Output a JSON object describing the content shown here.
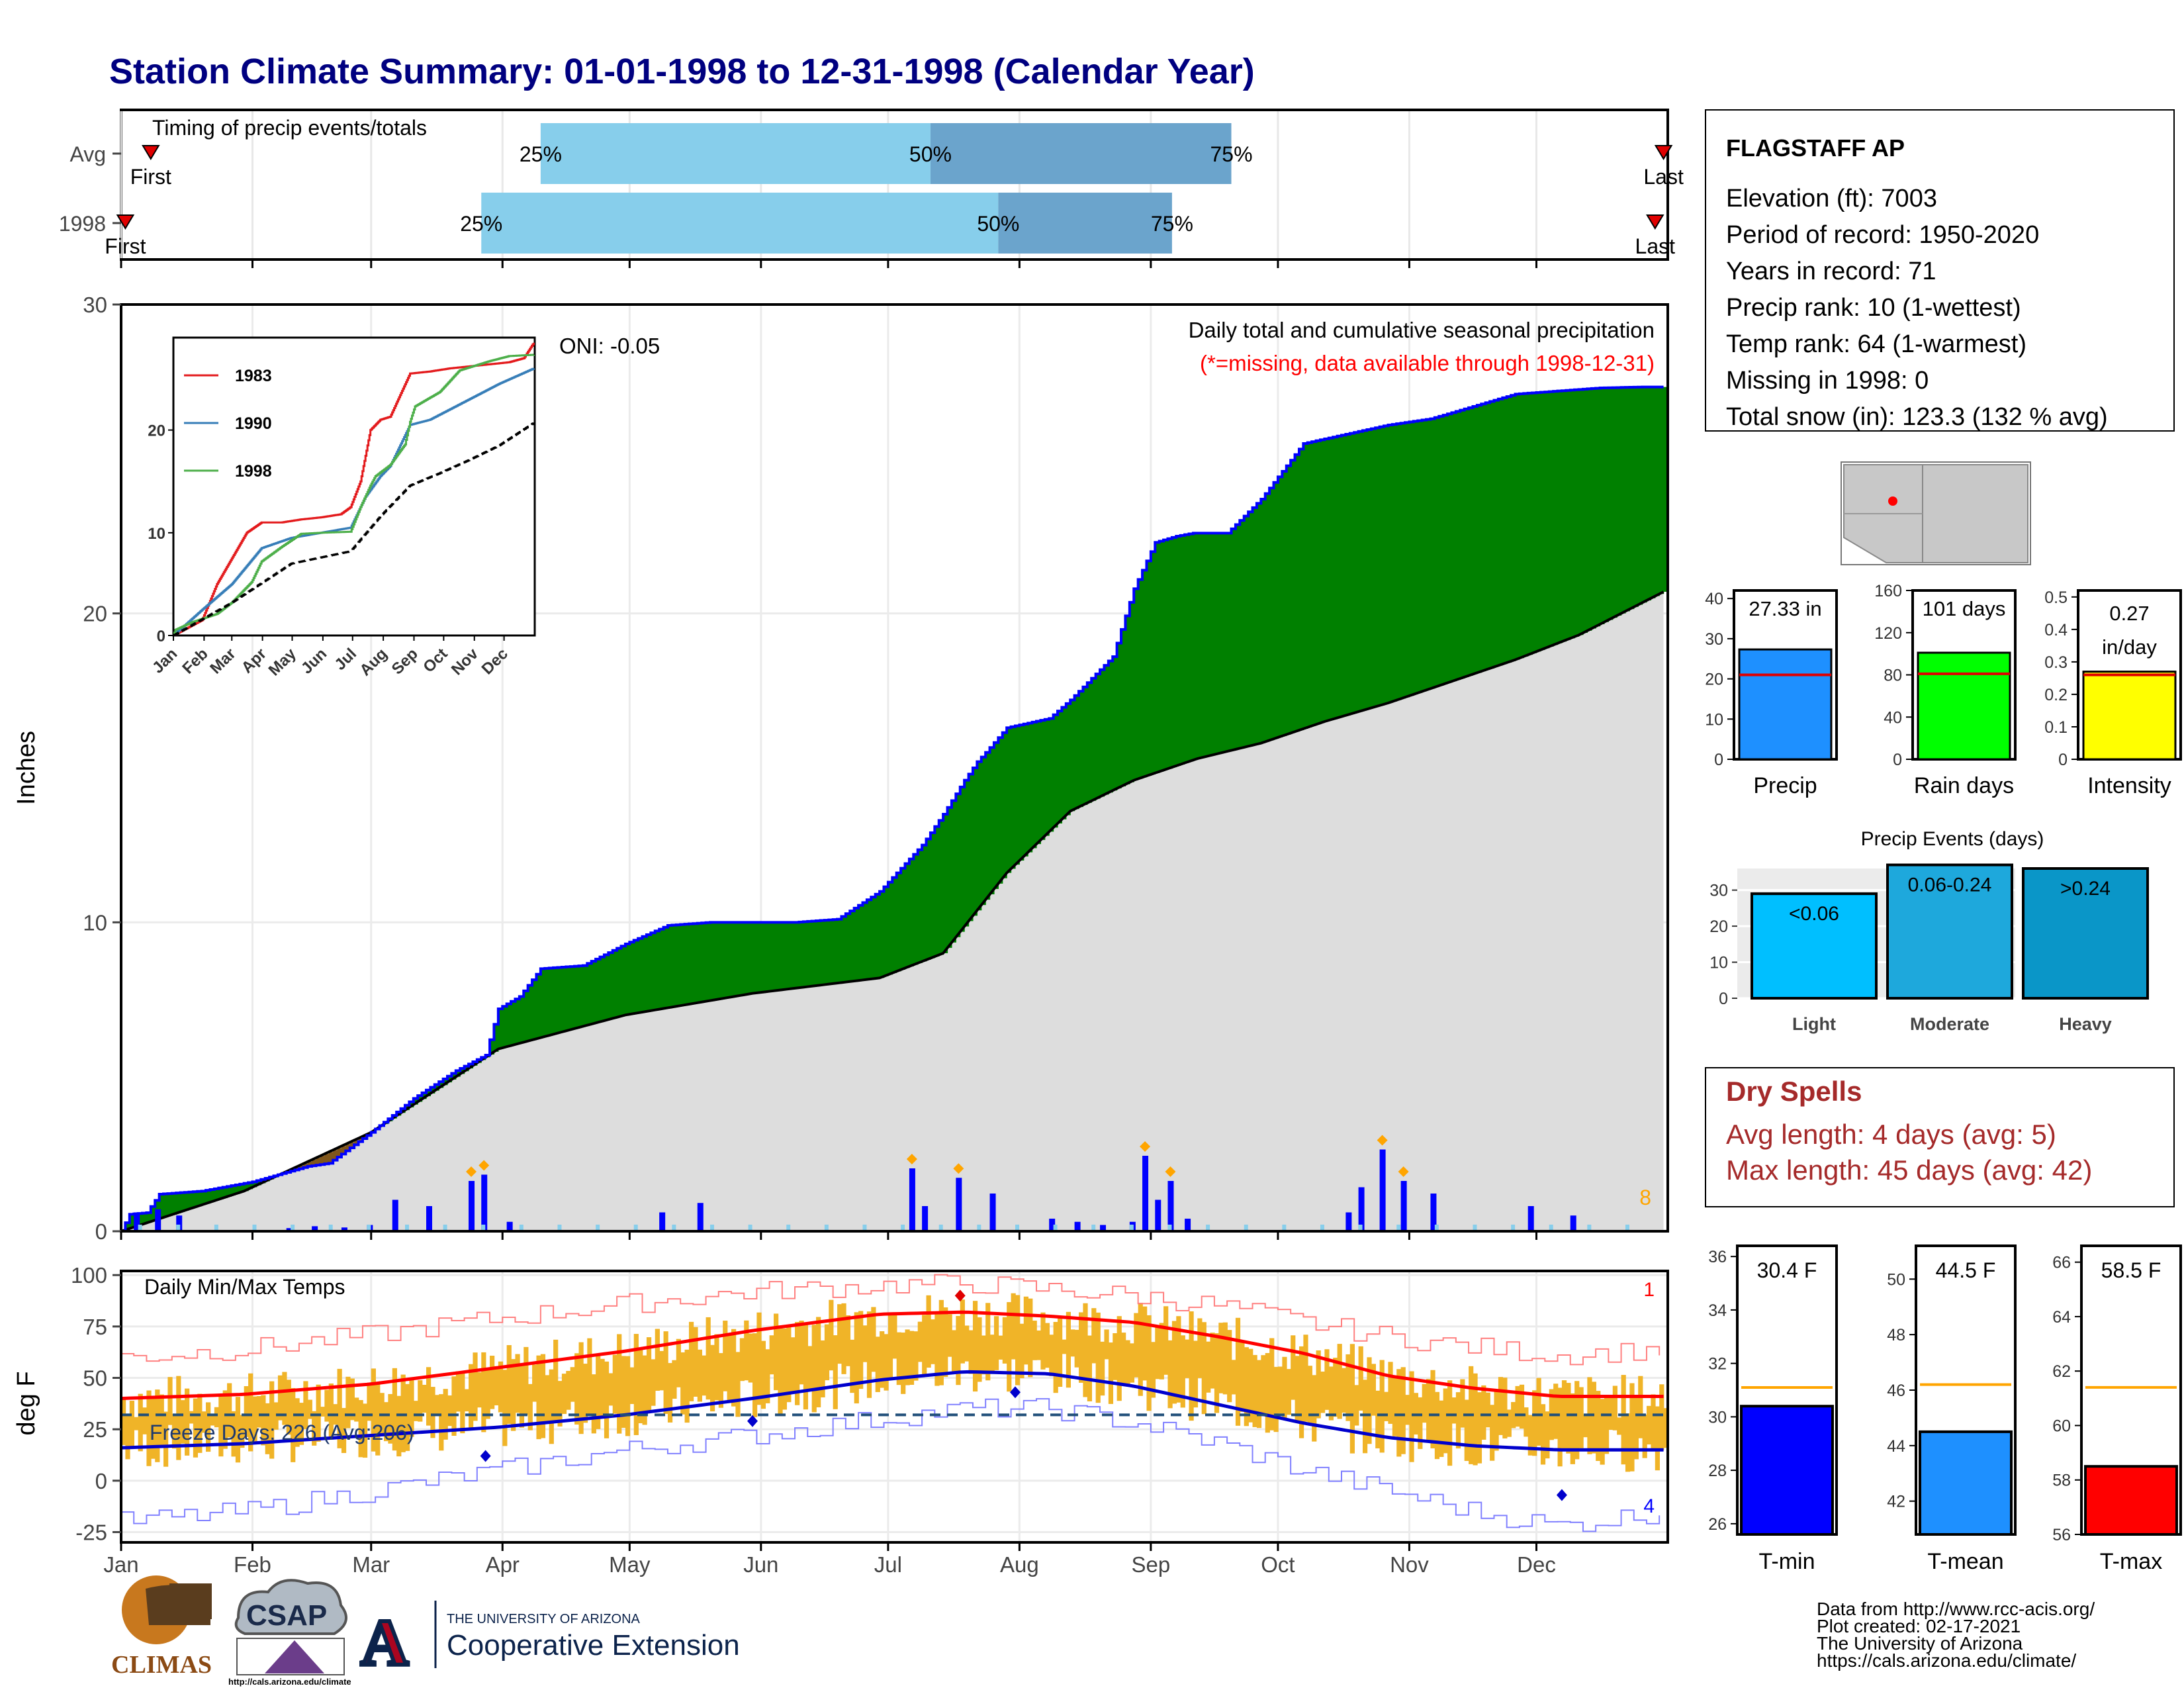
{
  "title": "Station Climate Summary: 01-01-1998 to 12-31-1998 (Calendar Year)",
  "months": [
    "Jan",
    "Feb",
    "Mar",
    "Apr",
    "May",
    "Jun",
    "Jul",
    "Aug",
    "Sep",
    "Oct",
    "Nov",
    "Dec"
  ],
  "timing": {
    "label": "Timing of precip events/totals",
    "rows": [
      {
        "name": "Avg",
        "first_label": "First",
        "last_label": "Last",
        "first_day": 8,
        "last_day": 365,
        "p25_day": 100,
        "p50_day": 192,
        "p75_day": 263,
        "p25_label": "25%",
        "p50_label": "50%",
        "p75_label": "75%"
      },
      {
        "name": "1998",
        "first_label": "First",
        "last_label": "Last",
        "first_day": 2,
        "last_day": 363,
        "p25_day": 86,
        "p50_day": 208,
        "p75_day": 249,
        "p25_label": "25%",
        "p50_label": "50%",
        "p75_label": "75%"
      }
    ],
    "color_light": "#87ceeb",
    "color_dark": "#6ba4cc"
  },
  "chart_data": [
    {
      "type": "area",
      "name": "cumulative-precip",
      "ylabel": "Inches",
      "ylim": [
        0,
        30
      ],
      "yticks": [
        0,
        10,
        20,
        30
      ],
      "annotation_title": "Daily total and cumulative seasonal precipitation",
      "annotation_missing": "(*=missing, data available through 1998-12-31)",
      "oni_label": "ONI: -0.05",
      "count_label": "8",
      "cumulative_1998": {
        "x_day": [
          1,
          3,
          7,
          10,
          20,
          32,
          45,
          50,
          60,
          70,
          80,
          87,
          90,
          95,
          100,
          110,
          120,
          130,
          140,
          150,
          160,
          170,
          180,
          190,
          195,
          200,
          203,
          205,
          210,
          220,
          225,
          235,
          240,
          245,
          250,
          254,
          258,
          262,
          270,
          280,
          290,
          300,
          310,
          320,
          330,
          340,
          350,
          360,
          365
        ],
        "y": [
          0,
          0.55,
          0.6,
          1.2,
          1.3,
          1.6,
          2.1,
          2.2,
          3.2,
          4.3,
          5.2,
          5.7,
          7.2,
          7.6,
          8.5,
          8.6,
          9.3,
          9.9,
          10.0,
          10.0,
          10.0,
          10.1,
          11.0,
          12.5,
          13.5,
          14.6,
          15.2,
          15.5,
          16.3,
          16.6,
          17.2,
          18.6,
          20.8,
          22.3,
          22.5,
          22.6,
          22.6,
          22.6,
          23.7,
          25.5,
          25.8,
          26.1,
          26.3,
          26.7,
          27.1,
          27.2,
          27.3,
          27.33,
          27.33
        ]
      },
      "cumulative_avg": {
        "x_day": [
          1,
          30,
          60,
          90,
          120,
          150,
          180,
          195,
          210,
          225,
          240,
          255,
          270,
          285,
          300,
          315,
          330,
          345,
          365
        ],
        "y": [
          0,
          1.3,
          3.2,
          5.9,
          7.0,
          7.7,
          8.2,
          9.0,
          11.6,
          13.6,
          14.6,
          15.3,
          15.8,
          16.5,
          17.1,
          17.8,
          18.5,
          19.3,
          20.7
        ]
      },
      "fill_above": "#008000",
      "fill_below": "#80561b",
      "fill_avg": "#dddddd",
      "daily_bars_inches": [
        {
          "day": 4,
          "v": 0.3
        },
        {
          "day": 9,
          "v": 0.35
        },
        {
          "day": 14,
          "v": 0.25
        },
        {
          "day": 40,
          "v": 0.05
        },
        {
          "day": 46,
          "v": 0.08
        },
        {
          "day": 53,
          "v": 0.06
        },
        {
          "day": 59,
          "v": 0.1
        },
        {
          "day": 65,
          "v": 0.5
        },
        {
          "day": 73,
          "v": 0.4
        },
        {
          "day": 83,
          "v": 0.8
        },
        {
          "day": 86,
          "v": 0.9
        },
        {
          "day": 92,
          "v": 0.15
        },
        {
          "day": 128,
          "v": 0.3
        },
        {
          "day": 137,
          "v": 0.45
        },
        {
          "day": 187,
          "v": 1.0
        },
        {
          "day": 190,
          "v": 0.4
        },
        {
          "day": 198,
          "v": 0.85
        },
        {
          "day": 206,
          "v": 0.6
        },
        {
          "day": 220,
          "v": 0.2
        },
        {
          "day": 226,
          "v": 0.15
        },
        {
          "day": 232,
          "v": 0.1
        },
        {
          "day": 239,
          "v": 0.15
        },
        {
          "day": 242,
          "v": 1.2
        },
        {
          "day": 245,
          "v": 0.5
        },
        {
          "day": 248,
          "v": 0.8
        },
        {
          "day": 252,
          "v": 0.2
        },
        {
          "day": 290,
          "v": 0.3
        },
        {
          "day": 293,
          "v": 0.7
        },
        {
          "day": 298,
          "v": 1.3
        },
        {
          "day": 303,
          "v": 0.8
        },
        {
          "day": 310,
          "v": 0.6
        },
        {
          "day": 333,
          "v": 0.4
        },
        {
          "day": 343,
          "v": 0.25
        }
      ]
    },
    {
      "type": "line",
      "name": "inset-cumulative",
      "yticks": [
        0,
        10,
        20
      ],
      "ylim": [
        0,
        29
      ],
      "series": [
        {
          "name": "1983",
          "color": "#e31a1c",
          "x_day": [
            1,
            30,
            45,
            60,
            75,
            90,
            110,
            130,
            150,
            170,
            180,
            190,
            200,
            210,
            220,
            240,
            260,
            280,
            300,
            320,
            340,
            355,
            365
          ],
          "y": [
            0,
            1.5,
            5,
            7.5,
            10,
            11,
            11,
            11.3,
            11.5,
            11.8,
            12.5,
            15,
            20,
            21,
            21.3,
            25.5,
            25.7,
            26,
            26.2,
            26.4,
            26.6,
            27,
            28.5
          ]
        },
        {
          "name": "1990",
          "color": "#377eb8",
          "x_day": [
            1,
            30,
            60,
            90,
            120,
            150,
            180,
            195,
            210,
            220,
            240,
            260,
            280,
            300,
            330,
            365
          ],
          "y": [
            0,
            2.5,
            5,
            8.5,
            9.5,
            10,
            10.5,
            13.5,
            15.5,
            16.5,
            20.5,
            21,
            22,
            23,
            24.5,
            26
          ]
        },
        {
          "name": "1998",
          "color": "#4daf4a",
          "x_day": [
            1,
            3,
            20,
            45,
            60,
            80,
            90,
            110,
            130,
            150,
            180,
            190,
            200,
            205,
            220,
            235,
            240,
            245,
            270,
            290,
            300,
            320,
            340,
            365
          ],
          "y": [
            0,
            0.55,
            1.3,
            2.1,
            3.2,
            5.2,
            7.2,
            8.6,
            9.9,
            10,
            10.1,
            12.5,
            14.6,
            15.5,
            16.6,
            18.6,
            20.8,
            22.3,
            23.7,
            25.8,
            26.1,
            26.7,
            27.2,
            27.33
          ]
        },
        {
          "name": "",
          "color": "#000000",
          "dashed": true,
          "x_day": [
            1,
            60,
            120,
            180,
            210,
            240,
            270,
            300,
            330,
            365
          ],
          "y": [
            0,
            3.2,
            7.0,
            8.2,
            11.6,
            14.6,
            15.8,
            17.1,
            18.5,
            20.7
          ]
        }
      ],
      "month_labels": [
        "Jan",
        "Feb",
        "Mar",
        "Apr",
        "May",
        "Jun",
        "Jul",
        "Aug",
        "Sep",
        "Oct",
        "Nov",
        "Dec"
      ]
    },
    {
      "type": "bar",
      "name": "daily-temps",
      "ylabel": "deg F",
      "ylim": [
        -30,
        102
      ],
      "yticks": [
        -25,
        0,
        25,
        50,
        75,
        100
      ],
      "title": "Daily Min/Max Temps",
      "freeze_label": "Freeze Days: 226 (Avg:206)",
      "freeze_line": 32,
      "record_high_count": "1",
      "record_low_count": "4",
      "avg_max_curve": {
        "x_day": [
          1,
          30,
          60,
          90,
          120,
          150,
          180,
          200,
          220,
          240,
          260,
          280,
          300,
          320,
          340,
          365
        ],
        "y": [
          40,
          42,
          47,
          55,
          63,
          73,
          81,
          82,
          80,
          77,
          70,
          62,
          51,
          45,
          41,
          41
        ]
      },
      "avg_min_curve": {
        "x_day": [
          1,
          30,
          60,
          90,
          120,
          150,
          180,
          200,
          220,
          240,
          260,
          280,
          300,
          320,
          340,
          365
        ],
        "y": [
          16,
          18,
          22,
          26,
          32,
          40,
          49,
          53,
          52,
          46,
          37,
          28,
          21,
          17,
          15,
          15
        ]
      },
      "record_max_curve": {
        "x_day": [
          1,
          30,
          60,
          90,
          120,
          150,
          180,
          200,
          220,
          240,
          260,
          280,
          300,
          320,
          340,
          365
        ],
        "y": [
          60,
          64,
          71,
          79,
          86,
          92,
          95,
          96,
          93,
          90,
          85,
          77,
          70,
          65,
          61,
          64
        ]
      },
      "record_min_curve": {
        "x_day": [
          1,
          30,
          60,
          90,
          120,
          150,
          180,
          200,
          220,
          240,
          260,
          280,
          300,
          320,
          340,
          365
        ],
        "y": [
          -20,
          -15,
          -5,
          5,
          15,
          22,
          30,
          35,
          35,
          28,
          18,
          5,
          -5,
          -15,
          -22,
          -15
        ]
      }
    }
  ],
  "station": {
    "name": "FLAGSTAFF AP",
    "lines": [
      "Elevation (ft): 7003",
      "Period of record: 1950-2020",
      "Years in record: 71",
      "Precip rank: 10 (1-wettest)",
      "Temp rank: 64 (1-warmest)",
      "Missing in 1998: 0",
      "Total snow (in): 123.3 (132 % avg)"
    ]
  },
  "mini_bars": [
    {
      "label": "Precip",
      "value": 27.33,
      "value_label": "27.33 in",
      "avg": 21,
      "ymax": 42,
      "yticks": [
        0,
        10,
        20,
        30,
        40
      ],
      "color": "#1e90ff"
    },
    {
      "label": "Rain days",
      "value": 101,
      "value_label": "101 days",
      "avg": 81,
      "ymax": 160,
      "yticks": [
        0,
        40,
        80,
        120,
        160
      ],
      "color": "#00ff00"
    },
    {
      "label": "Intensity",
      "value": 0.27,
      "value_label": "0.27 in/day",
      "avg": 0.26,
      "ymax": 0.52,
      "yticks": [
        0.0,
        0.1,
        0.2,
        0.3,
        0.4,
        0.5
      ],
      "color": "#ffff00"
    }
  ],
  "events": {
    "title": "Precip Events (days)",
    "yticks": [
      0,
      10,
      20,
      30
    ],
    "ymax": 36,
    "bars": [
      {
        "label": "Light",
        "range": "<0.06",
        "value": 29,
        "color": "#00bfff"
      },
      {
        "label": "Moderate",
        "range": "0.06-0.24",
        "value": 37,
        "color": "#1ea8dc"
      },
      {
        "label": "Heavy",
        "range": ">0.24",
        "value": 36,
        "color": "#0a96c8"
      }
    ]
  },
  "dry_spells": {
    "title": "Dry Spells",
    "avg_line": "Avg length: 4 days (avg: 5)",
    "max_line": "Max length: 45 days (avg: 42)",
    "color": "#a52a2a"
  },
  "temp_bars": [
    {
      "label": "T-min",
      "value": 30.4,
      "value_label": "30.4 F",
      "avg": 31.1,
      "ymin": 25.6,
      "ymax": 36.4,
      "yticks": [
        26,
        28,
        30,
        32,
        34,
        36
      ],
      "color": "#0000ff"
    },
    {
      "label": "T-mean",
      "value": 44.5,
      "value_label": "44.5 F",
      "avg": 46.2,
      "ymin": 40.8,
      "ymax": 51.2,
      "yticks": [
        42,
        44,
        46,
        48,
        50
      ],
      "color": "#1e90ff"
    },
    {
      "label": "T-max",
      "value": 58.5,
      "value_label": "58.5 F",
      "avg": 61.4,
      "ymin": 56,
      "ymax": 66.6,
      "yticks": [
        56,
        58,
        60,
        62,
        64,
        66
      ],
      "color": "#ff0000"
    }
  ],
  "footer": {
    "lines": [
      "Data from http://www.rcc-acis.org/",
      "Plot created: 02-17-2021",
      "The University of Arizona",
      "https://cals.arizona.edu/climate/"
    ],
    "climas": "CLIMAS",
    "csap": "CSAP",
    "csap_url": "http://cals.arizona.edu/climate",
    "ua_small": "THE UNIVERSITY OF ARIZONA",
    "ua_big": "Cooperative Extension"
  }
}
